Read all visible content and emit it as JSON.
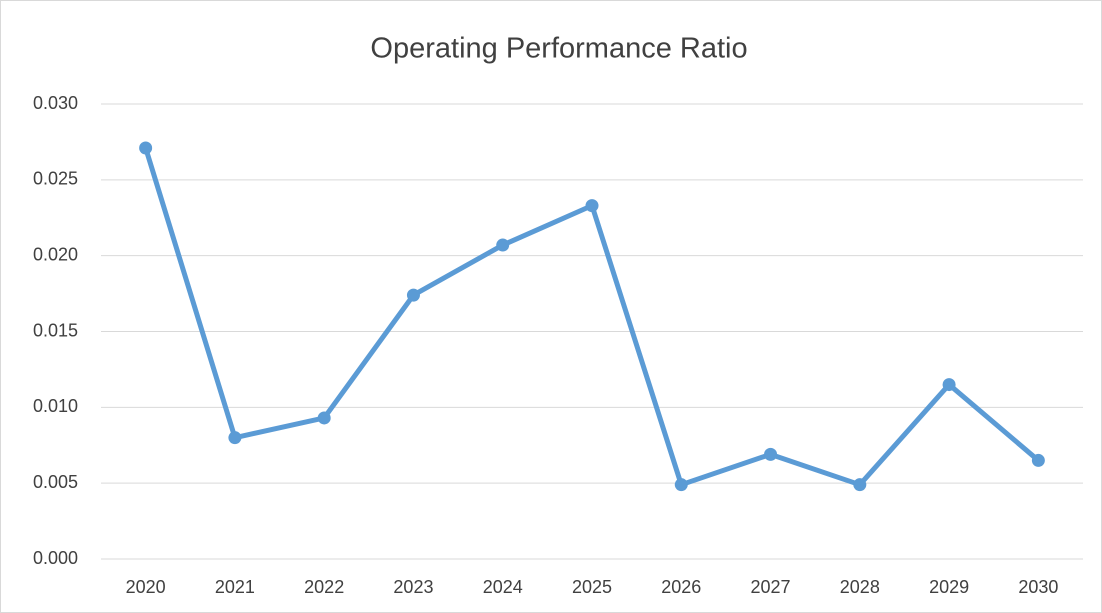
{
  "chart_data": {
    "type": "line",
    "title": "Operating Performance Ratio",
    "categories": [
      "2020",
      "2021",
      "2022",
      "2023",
      "2024",
      "2025",
      "2026",
      "2027",
      "2028",
      "2029",
      "2030"
    ],
    "series": [
      {
        "name": "Operating Performance Ratio",
        "color": "#5b9bd5",
        "values": [
          0.0271,
          0.008,
          0.0093,
          0.0174,
          0.0207,
          0.0233,
          0.0049,
          0.0069,
          0.0049,
          0.0115,
          0.0065
        ]
      }
    ],
    "ylim": [
      0,
      0.03
    ],
    "yticks": [
      {
        "value": 0,
        "label": "0.000"
      },
      {
        "value": 0.005,
        "label": "0.005"
      },
      {
        "value": 0.01,
        "label": "0.010"
      },
      {
        "value": 0.015,
        "label": "0.015"
      },
      {
        "value": 0.02,
        "label": "0.020"
      },
      {
        "value": 0.025,
        "label": "0.025"
      },
      {
        "value": 0.03,
        "label": "0.030"
      }
    ],
    "grid": true
  }
}
